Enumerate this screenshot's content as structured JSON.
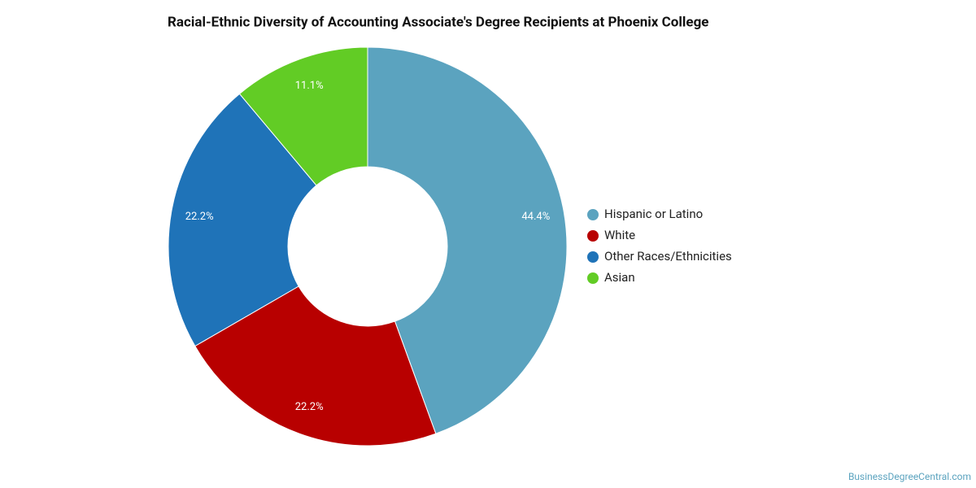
{
  "chart_data": {
    "type": "donut",
    "title": "Racial-Ethnic Diversity of Accounting Associate's Degree Recipients at Phoenix College",
    "categories": [
      "Hispanic or Latino",
      "White",
      "Other Races/Ethnicities",
      "Asian"
    ],
    "values": [
      44.4,
      22.2,
      22.2,
      11.1
    ],
    "value_labels": [
      "44.4%",
      "22.2%",
      "22.2%",
      "11.1%"
    ],
    "colors": [
      "#5ba3bf",
      "#b80000",
      "#1f73b8",
      "#62cc25"
    ],
    "legend": "right",
    "source": "BusinessDegreeCentral.com"
  }
}
